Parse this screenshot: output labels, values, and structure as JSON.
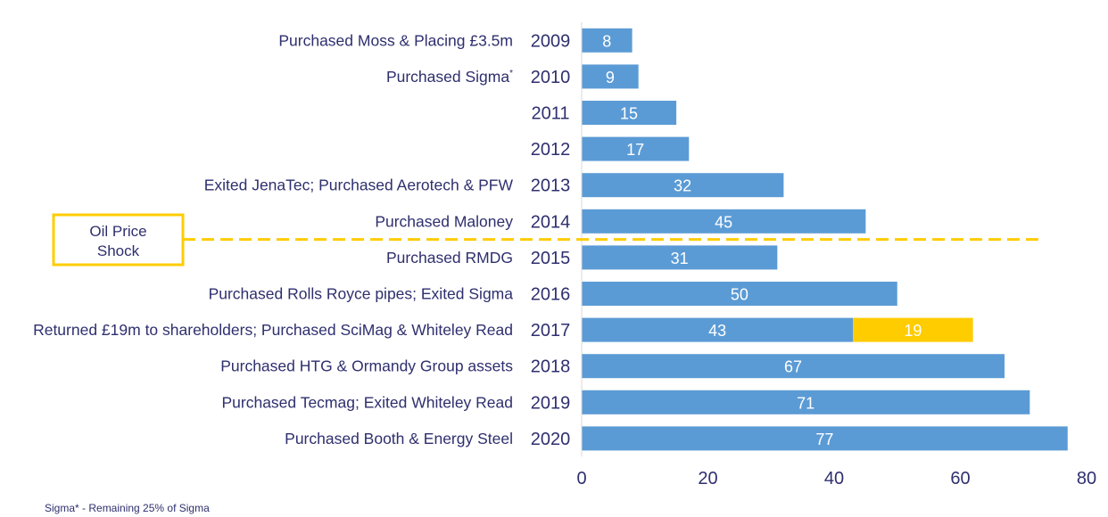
{
  "chart_data": {
    "type": "bar",
    "orientation": "horizontal",
    "categories": [
      "2009",
      "2010",
      "2011",
      "2012",
      "2013",
      "2014",
      "2015",
      "2016",
      "2017",
      "2018",
      "2019",
      "2020"
    ],
    "annotations": [
      "Purchased Moss & Placing £3.5m",
      "Purchased Sigma",
      "",
      "",
      "Exited JenaTec; Purchased Aerotech & PFW",
      "Purchased Maloney",
      "Purchased RMDG",
      "Purchased Rolls Royce pipes; Exited Sigma",
      "Returned £19m to shareholders; Purchased SciMag & Whiteley Read",
      "Purchased HTG & Ormandy Group assets",
      "Purchased Tecmag; Exited Whiteley Read",
      "Purchased Booth & Energy Steel"
    ],
    "annotation_superscripts": [
      "",
      "*",
      "",
      "",
      "",
      "",
      "",
      "",
      "",
      "",
      "",
      ""
    ],
    "series": [
      {
        "values": [
          8,
          9,
          15,
          17,
          32,
          45,
          31,
          50,
          43,
          67,
          71,
          77
        ],
        "color": "#5b9bd5"
      },
      {
        "values": [
          0,
          0,
          0,
          0,
          0,
          0,
          0,
          0,
          19,
          0,
          0,
          0
        ],
        "color": "#ffcc00"
      }
    ],
    "xlim": [
      0,
      80
    ],
    "xticks": [
      0,
      20,
      40,
      60,
      80
    ],
    "grid": false,
    "legend": "none",
    "shock_marker": {
      "label_line1": "Oil Price",
      "label_line2": "Shock",
      "between": [
        "2014",
        "2015"
      ],
      "x_end": 73,
      "color": "#ffcc00"
    }
  },
  "footnote": "Sigma* - Remaining 25% of Sigma"
}
